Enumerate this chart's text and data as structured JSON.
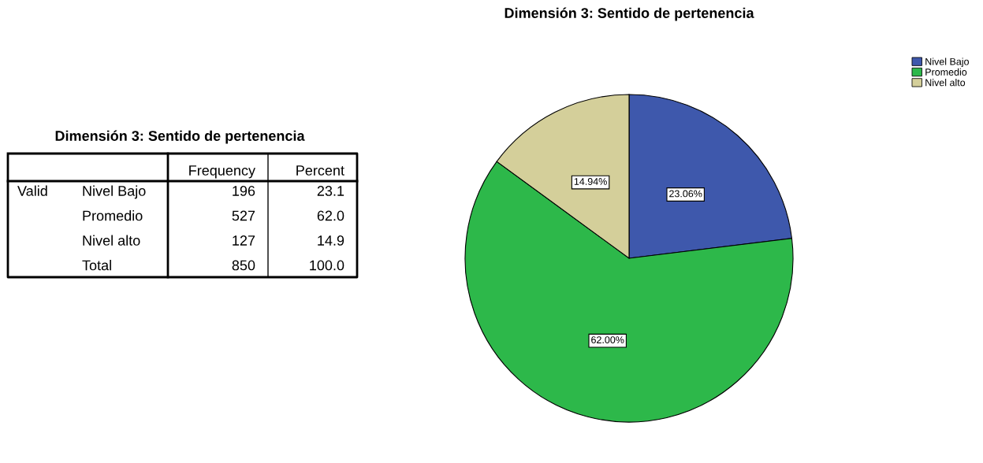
{
  "chart_data": [
    {
      "type": "other",
      "title": "Dimensión 3: Sentido de pertenencia",
      "annotations": [
        "Valid"
      ],
      "categories": [
        "Frequency",
        "Percent"
      ],
      "y_categories": [
        "Nivel Bajo",
        "Promedio",
        "Nivel alto",
        "Total"
      ],
      "cell_labels": [
        [
          "196",
          "23.1"
        ],
        [
          "527",
          "62.0"
        ],
        [
          "127",
          "14.9"
        ],
        [
          "850",
          "100.0"
        ]
      ]
    },
    {
      "type": "pie",
      "title": "Dimensión 3: Sentido de pertenencia",
      "categories": [
        "Nivel Bajo",
        "Promedio",
        "Nivel alto"
      ],
      "values": [
        23.06,
        62.0,
        14.94
      ],
      "colors": [
        "#3e58ac",
        "#2db84a",
        "#d4cf9a"
      ],
      "value_labels": [
        "23.06%",
        "62.00%",
        "14.94%"
      ],
      "legend": "top right"
    }
  ]
}
